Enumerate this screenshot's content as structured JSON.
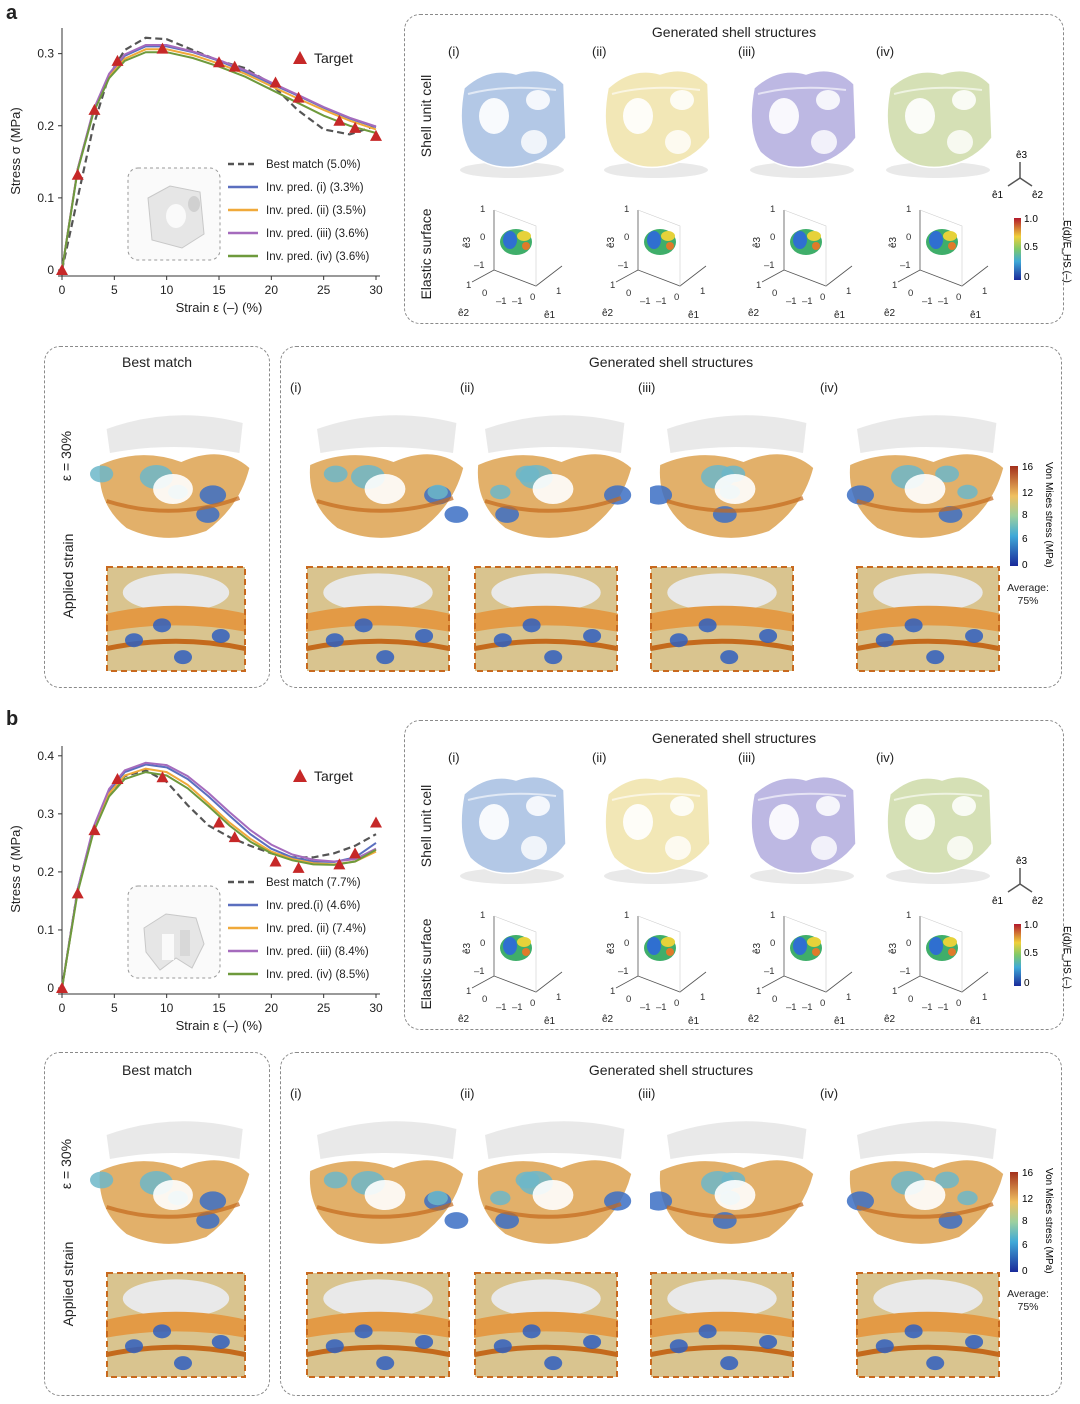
{
  "panels": [
    {
      "letter": "a",
      "chart_data": {
        "type": "line",
        "xlabel": "Strain ε (–) (%)",
        "ylabel": "Stress σ (MPa)",
        "xlim": [
          0,
          30
        ],
        "ylim": [
          0,
          0.33
        ],
        "xticks": [
          0,
          5,
          10,
          15,
          20,
          25,
          30
        ],
        "xtick_labels": [
          "0",
          "5",
          "10",
          "15",
          "20",
          "25",
          "30"
        ],
        "yticks": [
          0,
          0.1,
          0.2,
          0.3
        ],
        "ytick_labels": [
          "0",
          "0.1",
          "0.2",
          "0.3"
        ],
        "target": {
          "name": "Target",
          "x": [
            0,
            1.5,
            3.1,
            5.3,
            9.6,
            15,
            16.5,
            20.4,
            22.6,
            26.5,
            28,
            30
          ],
          "y": [
            0,
            0.132,
            0.222,
            0.29,
            0.307,
            0.288,
            0.282,
            0.26,
            0.239,
            0.207,
            0.197,
            0.186
          ]
        },
        "series": [
          {
            "name": "Best match (5.0%)",
            "color": "#555555",
            "dashed": true,
            "x": [
              0,
              1.5,
              3,
              4.5,
              6,
              8,
              10,
              12.5,
              15,
              17.5,
              20,
              22.5,
              25,
              27.5,
              30
            ],
            "y": [
              0,
              0.1,
              0.2,
              0.27,
              0.305,
              0.322,
              0.32,
              0.305,
              0.29,
              0.28,
              0.258,
              0.222,
              0.195,
              0.188,
              0.2
            ]
          },
          {
            "name": "Inv. pred. (i) (3.3%)",
            "color": "#5b6fbf",
            "dashed": false,
            "x": [
              0,
              1.5,
              3,
              4.5,
              6,
              8,
              10,
              12.5,
              15,
              17.5,
              20,
              22.5,
              25,
              27.5,
              30
            ],
            "y": [
              0,
              0.14,
              0.22,
              0.27,
              0.297,
              0.31,
              0.31,
              0.302,
              0.29,
              0.275,
              0.258,
              0.242,
              0.225,
              0.21,
              0.198
            ]
          },
          {
            "name": "Inv. pred. (ii) (3.5%)",
            "color": "#f0a93a",
            "dashed": false,
            "x": [
              0,
              1.5,
              3,
              4.5,
              6,
              8,
              10,
              12.5,
              15,
              17.5,
              20,
              22.5,
              25,
              27.5,
              30
            ],
            "y": [
              0,
              0.14,
              0.22,
              0.268,
              0.293,
              0.306,
              0.306,
              0.298,
              0.286,
              0.272,
              0.255,
              0.238,
              0.222,
              0.207,
              0.195
            ]
          },
          {
            "name": "Inv. pred. (iii) (3.6%)",
            "color": "#a56bbd",
            "dashed": false,
            "x": [
              0,
              1.5,
              3,
              4.5,
              6,
              8,
              10,
              12.5,
              15,
              17.5,
              20,
              22.5,
              25,
              27.5,
              30
            ],
            "y": [
              0,
              0.14,
              0.222,
              0.272,
              0.299,
              0.312,
              0.312,
              0.303,
              0.291,
              0.277,
              0.26,
              0.243,
              0.226,
              0.211,
              0.199
            ]
          },
          {
            "name": "Inv. pred. (iv) (3.6%)",
            "color": "#6e9a3c",
            "dashed": false,
            "x": [
              0,
              1.5,
              3,
              4.5,
              6,
              8,
              10,
              12.5,
              15,
              17.5,
              20,
              22.5,
              25,
              27.5,
              30
            ],
            "y": [
              0,
              0.138,
              0.218,
              0.266,
              0.29,
              0.302,
              0.302,
              0.294,
              0.282,
              0.268,
              0.25,
              0.232,
              0.214,
              0.2,
              0.19
            ]
          }
        ]
      },
      "gen_title": "Generated shell structures",
      "romans": [
        "(i)",
        "(ii)",
        "(iii)",
        "(iv)"
      ],
      "row_label_top": "Shell unit cell",
      "row_label_bottom": "Elastic surface",
      "unit_colors": [
        "#b3c8e6",
        "#f2e7b6",
        "#bdb8e3",
        "#d5e0b5"
      ],
      "elastic_cbar": {
        "label": "E(d)/E_HS (–)",
        "ticks": [
          "1.0",
          "0.5",
          "0"
        ]
      },
      "axes_labels": {
        "e1": "ê1",
        "e2": "ê2",
        "e3": "ê3"
      },
      "best_match_title": "Best match",
      "strain_label": "ε = 30%",
      "applied_strain_label": "Applied strain",
      "vm_cbar": {
        "label": "Von Mises stress (MPa)",
        "ticks": [
          "16",
          "12",
          "8",
          "6",
          "0"
        ],
        "note": "Average: 75%"
      }
    },
    {
      "letter": "b",
      "chart_data": {
        "type": "line",
        "xlabel": "Strain ε (–) (%)",
        "ylabel": "Stress σ (MPa)",
        "xlim": [
          0,
          30
        ],
        "ylim": [
          0,
          0.41
        ],
        "xticks": [
          0,
          5,
          10,
          15,
          20,
          25,
          30
        ],
        "xtick_labels": [
          "0",
          "5",
          "10",
          "15",
          "20",
          "25",
          "30"
        ],
        "yticks": [
          0,
          0.1,
          0.2,
          0.3,
          0.4
        ],
        "ytick_labels": [
          "0",
          "0.1",
          "0.2",
          "0.3",
          "0.4"
        ],
        "target": {
          "name": "Target",
          "x": [
            0,
            1.5,
            3.1,
            5.3,
            9.6,
            15,
            16.5,
            20.4,
            22.6,
            26.5,
            28,
            30
          ],
          "y": [
            0,
            0.163,
            0.272,
            0.36,
            0.363,
            0.285,
            0.26,
            0.218,
            0.207,
            0.213,
            0.232,
            0.285
          ]
        },
        "series": [
          {
            "name": "Best match (7.7%)",
            "color": "#555555",
            "dashed": true,
            "x": [
              0,
              1.5,
              3,
              4.5,
              6,
              8,
              10,
              12,
              14,
              16,
              18,
              20,
              22,
              24,
              26,
              28,
              30
            ],
            "y": [
              0,
              0.17,
              0.27,
              0.335,
              0.365,
              0.375,
              0.355,
              0.315,
              0.28,
              0.26,
              0.245,
              0.232,
              0.225,
              0.225,
              0.232,
              0.245,
              0.265
            ]
          },
          {
            "name": "Inv. pred.(i) (4.6%)",
            "color": "#5b6fbf",
            "dashed": false,
            "x": [
              0,
              1.5,
              3,
              4.5,
              6,
              8,
              10,
              12,
              14,
              16,
              18,
              20,
              22,
              24,
              26,
              28,
              30
            ],
            "y": [
              0,
              0.17,
              0.275,
              0.34,
              0.372,
              0.385,
              0.38,
              0.36,
              0.33,
              0.297,
              0.265,
              0.24,
              0.225,
              0.218,
              0.217,
              0.225,
              0.25
            ]
          },
          {
            "name": "Inv. pred. (ii) (7.4%)",
            "color": "#f0a93a",
            "dashed": false,
            "x": [
              0,
              1.5,
              3,
              4.5,
              6,
              8,
              10,
              12,
              14,
              16,
              18,
              20,
              22,
              24,
              26,
              28,
              30
            ],
            "y": [
              0,
              0.168,
              0.27,
              0.335,
              0.366,
              0.378,
              0.372,
              0.35,
              0.318,
              0.285,
              0.257,
              0.235,
              0.222,
              0.215,
              0.213,
              0.218,
              0.235
            ]
          },
          {
            "name": "Inv. pred. (iii) (8.4%)",
            "color": "#a56bbd",
            "dashed": false,
            "x": [
              0,
              1.5,
              3,
              4.5,
              6,
              8,
              10,
              12,
              14,
              16,
              18,
              20,
              22,
              24,
              26,
              28,
              30
            ],
            "y": [
              0,
              0.17,
              0.277,
              0.343,
              0.375,
              0.388,
              0.384,
              0.365,
              0.336,
              0.303,
              0.272,
              0.247,
              0.23,
              0.221,
              0.218,
              0.222,
              0.24
            ]
          },
          {
            "name": "Inv. pred. (iv) (8.5%)",
            "color": "#6e9a3c",
            "dashed": false,
            "x": [
              0,
              1.5,
              3,
              4.5,
              6,
              8,
              10,
              12,
              14,
              16,
              18,
              20,
              22,
              24,
              26,
              28,
              30
            ],
            "y": [
              0,
              0.165,
              0.268,
              0.33,
              0.36,
              0.372,
              0.366,
              0.344,
              0.313,
              0.28,
              0.252,
              0.232,
              0.22,
              0.213,
              0.212,
              0.218,
              0.238
            ]
          }
        ]
      },
      "gen_title": "Generated shell structures",
      "romans": [
        "(i)",
        "(ii)",
        "(iii)",
        "(iv)"
      ],
      "row_label_top": "Shell unit cell",
      "row_label_bottom": "Elastic surface",
      "unit_colors": [
        "#b3c8e6",
        "#f2e7b6",
        "#bdb8e3",
        "#d5e0b5"
      ],
      "elastic_cbar": {
        "label": "E(d)/E_HS (–)",
        "ticks": [
          "1.0",
          "0.5",
          "0"
        ]
      },
      "axes_labels": {
        "e1": "ê1",
        "e2": "ê2",
        "e3": "ê3"
      },
      "best_match_title": "Best match",
      "strain_label": "ε = 30%",
      "applied_strain_label": "Applied strain",
      "vm_cbar": {
        "label": "Von Mises stress (MPa)",
        "ticks": [
          "16",
          "12",
          "8",
          "6",
          "0"
        ],
        "note": "Average: 75%"
      }
    }
  ]
}
